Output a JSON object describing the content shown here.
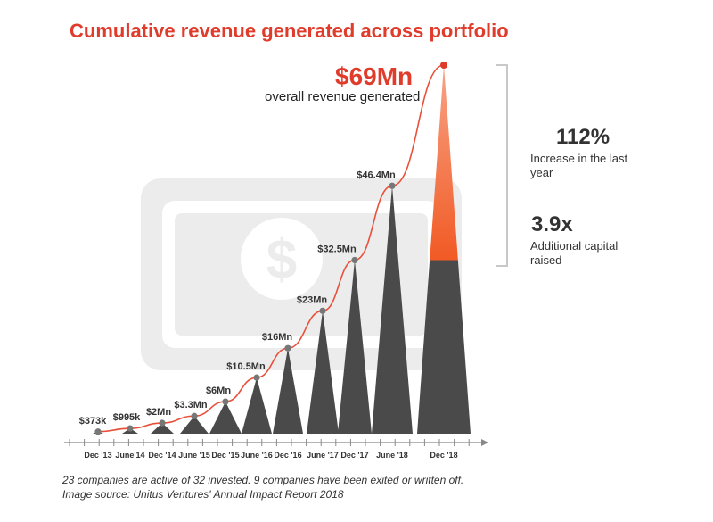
{
  "title": "Cumulative revenue generated across portfolio",
  "headline": {
    "value": "$69Mn",
    "label": "overall revenue generated"
  },
  "stats": [
    {
      "value": "112%",
      "label": "Increase in the last year",
      "icon": "up-arrow-icon"
    },
    {
      "value": "3.9x",
      "label": "Additional capital raised"
    }
  ],
  "footnote": {
    "line1": "23 companies are active of 32 invested. 9 companies have been exited or written off.",
    "line2": "Image source: Unitus Ventures' Annual Impact Report 2018"
  },
  "background_icon": "dollar-bill-icon",
  "colors": {
    "accent": "#e03c2c",
    "orange": "#f15a24",
    "bar": "#4a4a4a",
    "line": "#e8503a",
    "text": "#333333",
    "watermark": "#ececec"
  },
  "chart_data": {
    "type": "bar",
    "categories": [
      "Dec '13",
      "June'14",
      "Dec '14",
      "June '15",
      "Dec '15",
      "June '16",
      "Dec '16",
      "June '17",
      "Dec '17",
      "June '18",
      "Dec '18"
    ],
    "values": [
      0.373,
      0.995,
      2,
      3.3,
      6,
      10.5,
      16,
      23,
      32.5,
      46.4,
      69
    ],
    "data_labels": [
      "$373k",
      "$995k",
      "$2Mn",
      "$3.3Mn",
      "$6Mn",
      "$10.5Mn",
      "$16Mn",
      "$23Mn",
      "$32.5Mn",
      "$46.4Mn",
      ""
    ],
    "title": "Cumulative revenue generated across portfolio",
    "xlabel": "",
    "ylabel": "",
    "ylim": [
      0,
      70
    ],
    "grid": false,
    "legend": "none",
    "bar_shape": "triangle",
    "highlight_last_increase_from": 32.5
  }
}
